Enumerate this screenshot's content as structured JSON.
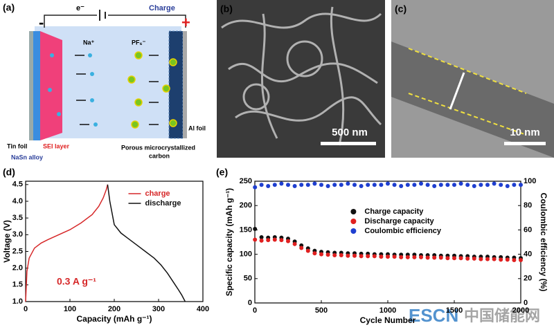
{
  "panels": {
    "a": {
      "label": "(a)",
      "electron": "e⁻",
      "charge": "Charge",
      "minus": "-",
      "plus": "+",
      "na": "Na⁺",
      "pf6": "PF₆⁻",
      "tin_foil": "Tin foil",
      "sei": "SEI layer",
      "nasn": "NaSn alloy",
      "carbon_1": "Porous microcrystallized",
      "carbon_2": "carbon",
      "al_foil": "Al foil"
    },
    "b": {
      "label": "(b)",
      "scale": "500 nm"
    },
    "c": {
      "label": "(c)",
      "scale": "10 nm"
    }
  },
  "watermark": {
    "brand": "ESCN",
    "site": "中国储能网"
  },
  "chart_data": [
    {
      "type": "line",
      "panel_label": "(d)",
      "x_label": "Capacity (mAh g⁻¹)",
      "y_label": "Voltage (V)",
      "annotation": "0.3 A g⁻¹",
      "xlim": [
        0,
        400
      ],
      "xticks": [
        0,
        100,
        200,
        300,
        400
      ],
      "ylim": [
        1.0,
        4.6
      ],
      "yticks": [
        {
          "value": 1.0,
          "label": "1.0"
        },
        {
          "value": 1.5,
          "label": "1.5"
        },
        {
          "value": 2.0,
          "label": "2.0"
        },
        {
          "value": 2.5,
          "label": "2.5"
        },
        {
          "value": 3.0,
          "label": "3.0"
        },
        {
          "value": 3.5,
          "label": "3.5"
        },
        {
          "value": 4.0,
          "label": "4.0"
        },
        {
          "value": 4.5,
          "label": "4.5"
        }
      ],
      "legend": "upper right",
      "series": [
        {
          "name": "charge",
          "color": "#d62728",
          "x": [
            0,
            3,
            8,
            20,
            35,
            50,
            75,
            100,
            125,
            150,
            165,
            175,
            182,
            185
          ],
          "values": [
            1.0,
            1.9,
            2.3,
            2.6,
            2.75,
            2.85,
            3.0,
            3.15,
            3.35,
            3.6,
            3.85,
            4.1,
            4.35,
            4.5
          ]
        },
        {
          "name": "discharge",
          "color": "#111111",
          "x": [
            185,
            190,
            200,
            215,
            230,
            250,
            270,
            290,
            305,
            320,
            335,
            345,
            352,
            360
          ],
          "values": [
            4.5,
            4.0,
            3.3,
            3.05,
            2.9,
            2.7,
            2.5,
            2.3,
            2.1,
            1.85,
            1.55,
            1.35,
            1.2,
            1.0
          ]
        }
      ]
    },
    {
      "type": "scatter",
      "panel_label": "(e)",
      "x_label": "Cycle Number",
      "y_label": "Specific capacity (mAh g⁻¹)",
      "y2_label": "Coulombic efficiency (%)",
      "xlim": [
        0,
        2000
      ],
      "xticks": [
        0,
        500,
        1000,
        1500,
        2000
      ],
      "ylim": [
        0,
        250
      ],
      "yticks": [
        0,
        50,
        100,
        150,
        200,
        250
      ],
      "y2lim": [
        0,
        100
      ],
      "y2ticks": [
        0,
        20,
        40,
        60,
        80,
        100
      ],
      "legend": "center",
      "x": [
        1,
        50,
        100,
        150,
        200,
        250,
        300,
        350,
        400,
        450,
        500,
        550,
        600,
        650,
        700,
        750,
        800,
        850,
        900,
        950,
        1000,
        1050,
        1100,
        1150,
        1200,
        1250,
        1300,
        1350,
        1400,
        1450,
        1500,
        1550,
        1600,
        1650,
        1700,
        1750,
        1800,
        1850,
        1900,
        1950,
        2000
      ],
      "series": [
        {
          "name": "Charge capacity",
          "color": "#111111",
          "values": [
            152,
            135,
            134,
            135,
            134,
            132,
            126,
            118,
            112,
            107,
            105,
            104,
            103,
            103,
            102,
            102,
            101,
            101,
            100,
            100,
            100,
            99,
            99,
            99,
            99,
            98,
            98,
            98,
            97,
            97,
            97,
            96,
            96,
            95,
            95,
            95,
            94,
            94,
            93,
            93,
            92
          ]
        },
        {
          "name": "Discharge capacity",
          "color": "#e02020",
          "values": [
            130,
            128,
            129,
            130,
            129,
            127,
            121,
            113,
            107,
            102,
            100,
            99,
            98,
            98,
            97,
            97,
            96,
            96,
            96,
            95,
            95,
            95,
            94,
            94,
            94,
            94,
            93,
            93,
            93,
            92,
            92,
            92,
            91,
            91,
            90,
            90,
            90,
            89,
            89,
            88,
            88
          ]
        },
        {
          "name": "Coulombic efficiency",
          "color": "#1f3fd0",
          "axis": "y2",
          "values": [
            95,
            97,
            96,
            97,
            98,
            97,
            96,
            97,
            97,
            98,
            97,
            96,
            97,
            97,
            98,
            97,
            96,
            97,
            97,
            97,
            98,
            97,
            96,
            97,
            97,
            98,
            97,
            96,
            97,
            97,
            97,
            98,
            97,
            96,
            97,
            97,
            98,
            97,
            96,
            97,
            97
          ]
        }
      ]
    }
  ]
}
